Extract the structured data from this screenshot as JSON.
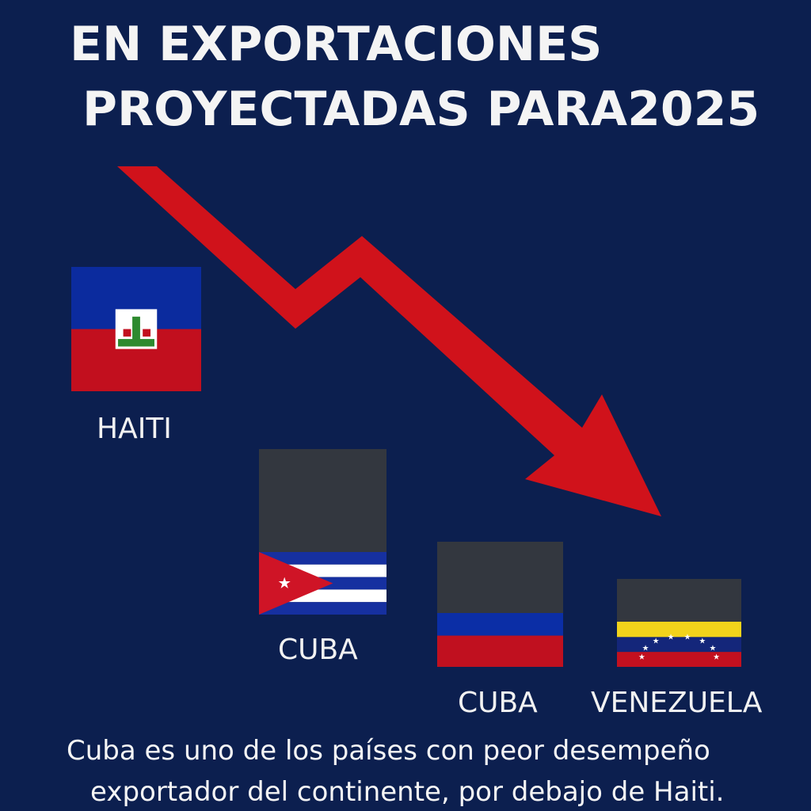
{
  "title": {
    "line1": "EN EXPORTACIONES",
    "line2": "PROYECTADAS PARA2025"
  },
  "colors": {
    "background": "#0c1f4f",
    "arrow": "#d0121b",
    "bar": "#33373f"
  },
  "chart_data": {
    "type": "bar",
    "categories": [
      "HAITI",
      "CUBA",
      "CUBA",
      "VENEZUELA"
    ],
    "values": [
      1.0,
      0.66,
      0.5,
      0.35
    ],
    "flags": [
      "haiti-flag",
      "cuba-flag",
      "blue-red-flag",
      "venezuela-flag"
    ],
    "trend": "down",
    "title": "EN EXPORTACIONES PROYECTADAS PARA2025",
    "xlabel": "",
    "ylabel": "",
    "grid": false,
    "legend": "none"
  },
  "footnote": {
    "line1": "Cuba es uno de los países con peor desempeño",
    "line2": "exportador del continente, por debajo de Haiti."
  }
}
